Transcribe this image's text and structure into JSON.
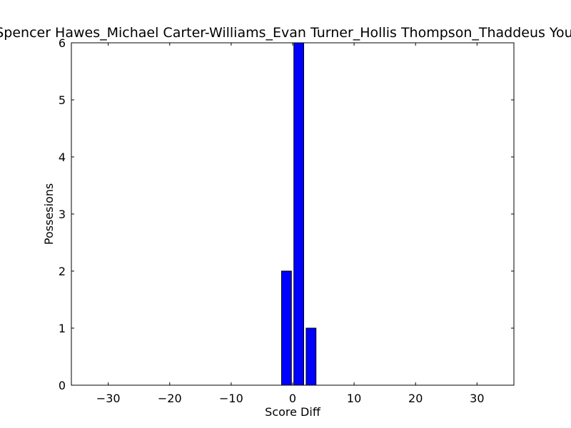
{
  "chart_data": {
    "type": "bar",
    "title": "Spencer Hawes_Michael Carter-Williams_Evan Turner_Hollis Thompson_Thaddeus Young",
    "xlabel": "Score Diff",
    "ylabel": "Possesions",
    "xlim": [
      -36,
      36
    ],
    "ylim": [
      0,
      6
    ],
    "xticks": [
      -30,
      -20,
      -10,
      0,
      10,
      20,
      30
    ],
    "yticks": [
      0,
      1,
      2,
      3,
      4,
      5,
      6
    ],
    "bar_width": 1.6,
    "bar_color": "#0000ff",
    "bars": [
      {
        "x": -1,
        "value": 2
      },
      {
        "x": 1,
        "value": 6
      },
      {
        "x": 3,
        "value": 1
      }
    ],
    "grid": false,
    "legend": "none"
  }
}
